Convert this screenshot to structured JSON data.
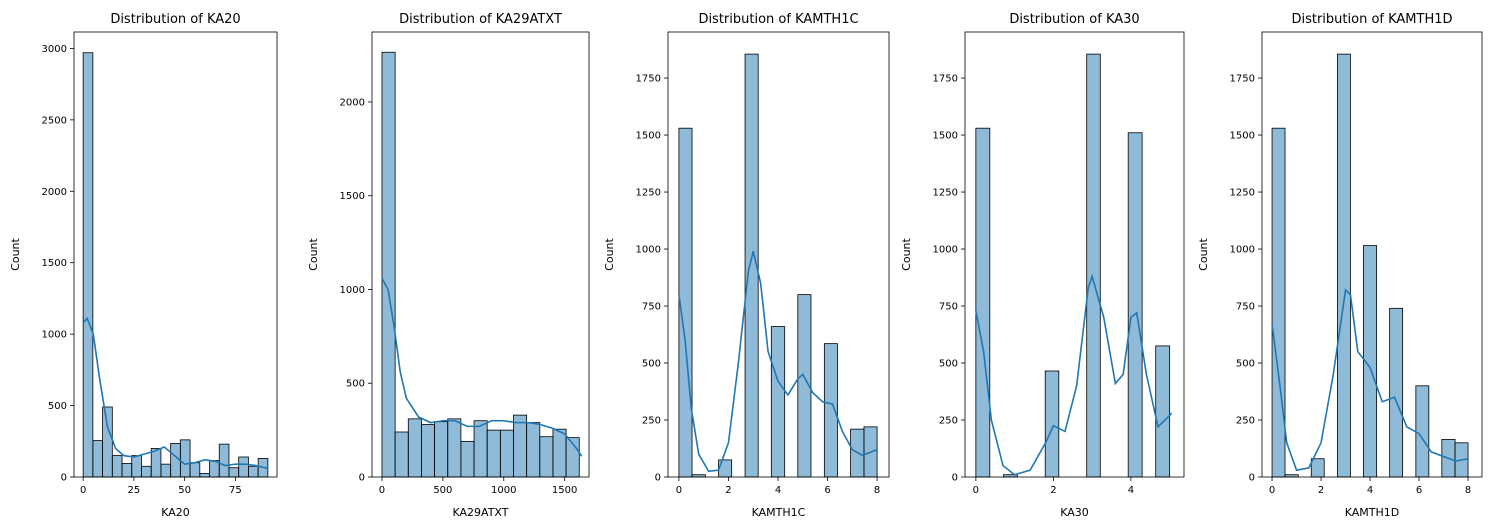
{
  "chart_data": [
    {
      "type": "histogram",
      "title": "Distribution of KA20",
      "xlabel": "KA20",
      "ylabel": "Count",
      "color": "#1f77b4",
      "bins": [
        0,
        4.79,
        9.58,
        14.37,
        19.16,
        23.95,
        28.74,
        33.53,
        38.32,
        43.11,
        47.89,
        52.68,
        57.47,
        62.26,
        67.05,
        71.84,
        76.63,
        81.42,
        86.21,
        91
      ],
      "counts": [
        2970,
        255,
        490,
        150,
        95,
        150,
        75,
        200,
        90,
        235,
        260,
        100,
        25,
        115,
        230,
        65,
        140,
        75,
        130
      ],
      "kde": {
        "x": [
          0,
          2,
          5,
          8,
          12,
          16,
          20,
          25,
          30,
          35,
          40,
          45,
          50,
          55,
          60,
          65,
          70,
          75,
          80,
          85,
          91
        ],
        "values": [
          1080,
          1110,
          1000,
          700,
          350,
          200,
          150,
          140,
          160,
          180,
          210,
          150,
          90,
          100,
          120,
          110,
          80,
          90,
          90,
          80,
          60
        ]
      },
      "xlim": [
        -4.5,
        95.5
      ],
      "ylim": [
        0,
        3115
      ],
      "xticks": [
        0,
        25,
        50,
        75
      ],
      "yticks": [
        0,
        500,
        1000,
        1500,
        2000,
        2500,
        3000
      ]
    },
    {
      "type": "histogram",
      "title": "Distribution of KA29ATXT",
      "xlabel": "KA29ATXT",
      "ylabel": "Count",
      "color": "#1f77b4",
      "bins": [
        0,
        108,
        216,
        324,
        432,
        540,
        648,
        756,
        864,
        972,
        1080,
        1188,
        1296,
        1404,
        1512,
        1620
      ],
      "counts": [
        2265,
        240,
        310,
        280,
        295,
        310,
        190,
        300,
        250,
        250,
        330,
        290,
        215,
        255,
        210
      ],
      "kde": {
        "x": [
          0,
          50,
          100,
          150,
          200,
          300,
          400,
          500,
          600,
          700,
          800,
          900,
          1000,
          1100,
          1200,
          1300,
          1400,
          1500,
          1600,
          1640
        ],
        "values": [
          1060,
          1000,
          800,
          560,
          420,
          320,
          290,
          300,
          300,
          270,
          270,
          300,
          300,
          290,
          290,
          280,
          260,
          230,
          150,
          110
        ]
      },
      "xlim": [
        -82,
        1700
      ],
      "ylim": [
        0,
        2373
      ],
      "xticks": [
        0,
        500,
        1000,
        1500
      ],
      "yticks": [
        0,
        500,
        1000,
        1500,
        2000
      ]
    },
    {
      "type": "histogram",
      "title": "Distribution of KAMTH1C",
      "xlabel": "KAMTH1C",
      "ylabel": "Count",
      "color": "#1f77b4",
      "bins": [
        0,
        0.53,
        1.07,
        1.6,
        2.13,
        2.67,
        3.2,
        3.73,
        4.27,
        4.8,
        5.33,
        5.87,
        6.4,
        6.93,
        7.47,
        8
      ],
      "counts": [
        1530,
        10,
        0,
        75,
        0,
        1855,
        0,
        660,
        0,
        800,
        0,
        585,
        0,
        210,
        220
      ],
      "kde": {
        "x": [
          0,
          0.25,
          0.5,
          0.8,
          1.2,
          1.6,
          2,
          2.4,
          2.8,
          3,
          3.3,
          3.6,
          4,
          4.4,
          4.8,
          5,
          5.4,
          5.8,
          6.2,
          6.6,
          7,
          7.4,
          8
        ],
        "values": [
          800,
          600,
          300,
          100,
          25,
          30,
          150,
          500,
          900,
          990,
          850,
          550,
          420,
          360,
          430,
          450,
          370,
          330,
          320,
          200,
          120,
          95,
          120
        ]
      },
      "xlim": [
        -0.44,
        8.48
      ],
      "ylim": [
        0,
        1952
      ],
      "xticks": [
        0,
        2,
        4,
        6,
        8
      ],
      "yticks": [
        0,
        250,
        500,
        750,
        1000,
        1250,
        1500,
        1750
      ]
    },
    {
      "type": "histogram",
      "title": "Distribution of KA30",
      "xlabel": "KA30",
      "ylabel": "Count",
      "color": "#1f77b4",
      "bins": [
        0,
        0.36,
        0.71,
        1.07,
        1.43,
        1.79,
        2.14,
        2.5,
        2.86,
        3.21,
        3.57,
        3.93,
        4.29,
        4.64,
        5
      ],
      "counts": [
        1530,
        0,
        10,
        0,
        0,
        465,
        0,
        0,
        1855,
        0,
        0,
        1510,
        0,
        575
      ],
      "kde": {
        "x": [
          0,
          0.2,
          0.4,
          0.7,
          1,
          1.4,
          1.8,
          2,
          2.3,
          2.6,
          2.9,
          3,
          3.3,
          3.6,
          3.8,
          4,
          4.15,
          4.4,
          4.7,
          5,
          5.05
        ],
        "values": [
          730,
          550,
          250,
          50,
          10,
          30,
          150,
          225,
          200,
          400,
          830,
          880,
          700,
          410,
          450,
          700,
          720,
          450,
          220,
          270,
          280
        ]
      },
      "xlim": [
        -0.28,
        5.37
      ],
      "ylim": [
        0,
        1952
      ],
      "xticks": [
        0,
        2,
        4
      ],
      "yticks": [
        0,
        250,
        500,
        750,
        1000,
        1250,
        1500,
        1750
      ]
    },
    {
      "type": "histogram",
      "title": "Distribution of KAMTH1D",
      "xlabel": "KAMTH1D",
      "ylabel": "Count",
      "color": "#1f77b4",
      "bins": [
        0,
        0.53,
        1.07,
        1.6,
        2.13,
        2.67,
        3.2,
        3.73,
        4.27,
        4.8,
        5.33,
        5.87,
        6.4,
        6.93,
        7.47,
        8
      ],
      "counts": [
        1530,
        10,
        0,
        80,
        0,
        1855,
        0,
        1015,
        0,
        740,
        0,
        400,
        0,
        165,
        150
      ],
      "kde": {
        "x": [
          0,
          0.3,
          0.6,
          1,
          1.5,
          2,
          2.5,
          3,
          3.2,
          3.5,
          4,
          4.5,
          5,
          5.5,
          6,
          6.5,
          7,
          7.5,
          8
        ],
        "values": [
          670,
          420,
          150,
          30,
          40,
          150,
          450,
          820,
          800,
          550,
          480,
          330,
          350,
          220,
          190,
          110,
          90,
          70,
          80
        ]
      },
      "xlim": [
        -0.41,
        8.57
      ],
      "ylim": [
        0,
        1952
      ],
      "xticks": [
        0,
        2,
        4,
        6,
        8
      ],
      "yticks": [
        0,
        250,
        500,
        750,
        1000,
        1250,
        1500,
        1750
      ]
    }
  ]
}
